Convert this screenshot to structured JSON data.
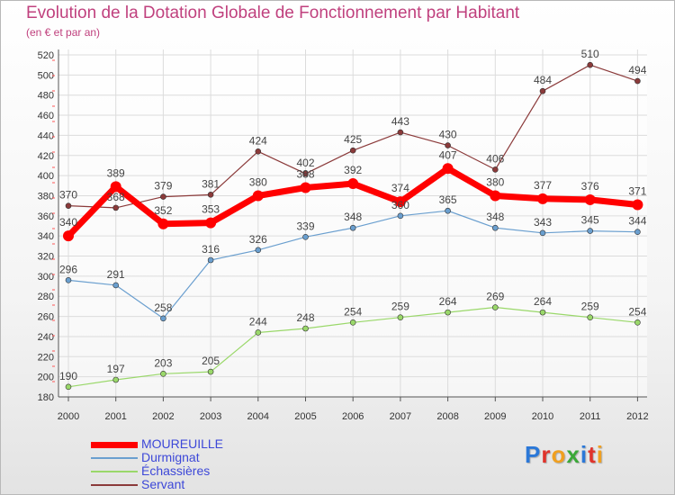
{
  "title": "Evolution de la Dotation Globale de Fonctionnement par Habitant",
  "subtitle": "(en € et par an)",
  "brand": "Proxiti",
  "brand_letter_colors": [
    "#2b78d8",
    "#e0332b",
    "#f0a020",
    "#3aa838",
    "#2b78d8",
    "#e0332b",
    "#f0a020"
  ],
  "chart_data": {
    "type": "line",
    "x": [
      "2000",
      "2001",
      "2002",
      "2003",
      "2004",
      "2005",
      "2006",
      "2007",
      "2008",
      "2009",
      "2010",
      "2011",
      "2012"
    ],
    "ylim": [
      180,
      520
    ],
    "yticks": [
      "180",
      "200",
      "220",
      "240",
      "260",
      "280",
      "300",
      "320",
      "340",
      "360",
      "380",
      "400",
      "420",
      "440",
      "460",
      "480",
      "500",
      "520"
    ],
    "grid": true,
    "legend_position": "bottom-left",
    "series": [
      {
        "name": "MOUREUILLE",
        "color": "#ff0000",
        "values": [
          340,
          389,
          352,
          353,
          380,
          388,
          392,
          374,
          407,
          380,
          377,
          376,
          371
        ],
        "value_labels": [
          "340",
          "389",
          "352",
          "353",
          "380",
          "388",
          "392",
          "374",
          "407",
          "380",
          "377",
          "376",
          "371"
        ]
      },
      {
        "name": "Durmignat",
        "color": "#6a9fcf",
        "values": [
          296,
          291,
          258,
          316,
          326,
          339,
          348,
          360,
          365,
          348,
          343,
          345,
          344
        ],
        "value_labels": [
          "296",
          "291",
          "258",
          "316",
          "326",
          "339",
          "348",
          "360",
          "365",
          "348",
          "343",
          "345",
          "344"
        ]
      },
      {
        "name": "Échassières",
        "color": "#9ad86a",
        "values": [
          190,
          197,
          203,
          205,
          244,
          248,
          254,
          259,
          264,
          269,
          264,
          259,
          254
        ],
        "value_labels": [
          "190",
          "197",
          "203",
          "205",
          "244",
          "248",
          "254",
          "259",
          "264",
          "269",
          "264",
          "259",
          "254"
        ]
      },
      {
        "name": "Servant",
        "color": "#8b3a3a",
        "values": [
          370,
          368,
          379,
          381,
          424,
          402,
          425,
          443,
          430,
          406,
          484,
          510,
          494
        ],
        "value_labels": [
          "370",
          "368",
          "379",
          "381",
          "424",
          "402",
          "425",
          "443",
          "430",
          "406",
          "484",
          "510",
          "494"
        ]
      }
    ]
  }
}
